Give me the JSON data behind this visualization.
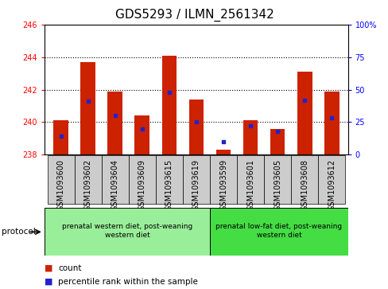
{
  "title": "GDS5293 / ILMN_2561342",
  "samples": [
    "GSM1093600",
    "GSM1093602",
    "GSM1093604",
    "GSM1093609",
    "GSM1093615",
    "GSM1093619",
    "GSM1093599",
    "GSM1093601",
    "GSM1093605",
    "GSM1093608",
    "GSM1093612"
  ],
  "bar_values": [
    240.1,
    243.7,
    241.9,
    240.4,
    244.1,
    241.4,
    238.3,
    240.1,
    239.6,
    243.1,
    241.9
  ],
  "bar_base": 238.0,
  "percentile_values": [
    14,
    41,
    30,
    20,
    48,
    25,
    10,
    22,
    18,
    42,
    28
  ],
  "bar_color": "#cc2200",
  "dot_color": "#2222cc",
  "ylim_left": [
    238,
    246
  ],
  "ylim_right": [
    0,
    100
  ],
  "yticks_left": [
    238,
    240,
    242,
    244,
    246
  ],
  "yticks_right": [
    0,
    25,
    50,
    75,
    100
  ],
  "group1_label": "prenatal western diet, post-weaning\nwestern diet",
  "group2_label": "prenatal low-fat diet, post-weaning\nwestern diet",
  "group1_count": 6,
  "group2_count": 5,
  "group1_color": "#99ee99",
  "group2_color": "#44dd44",
  "protocol_label": "protocol",
  "legend_count_label": "count",
  "legend_pct_label": "percentile rank within the sample",
  "title_fontsize": 11,
  "tick_fontsize": 7,
  "label_fontsize": 8,
  "sample_bg_color": "#cccccc",
  "gridline_ticks": [
    240,
    242,
    244
  ],
  "bar_width": 0.55
}
